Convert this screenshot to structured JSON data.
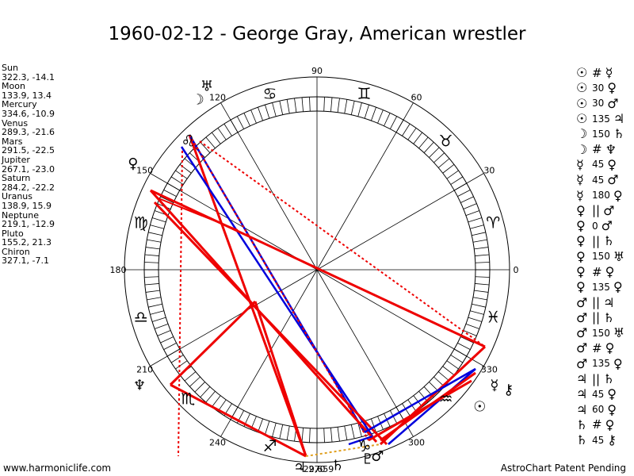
{
  "title": "1960-02-12 - George Gray, American wrestler",
  "planets": [
    {
      "name": "Sun",
      "value": "322.3, -14.1"
    },
    {
      "name": "Moon",
      "value": "133.9, 13.4"
    },
    {
      "name": "Mercury",
      "value": "334.6, -10.9"
    },
    {
      "name": "Venus",
      "value": "289.3, -21.6"
    },
    {
      "name": "Mars",
      "value": "291.5, -22.5"
    },
    {
      "name": "Jupiter",
      "value": "267.1, -23.0"
    },
    {
      "name": "Saturn",
      "value": "284.2, -22.2"
    },
    {
      "name": "Uranus",
      "value": "138.9, 15.9"
    },
    {
      "name": "Neptune",
      "value": "219.1, -12.9"
    },
    {
      "name": "Pluto",
      "value": "155.2, 21.3"
    },
    {
      "name": "Chiron",
      "value": "327.1, -7.1"
    }
  ],
  "degree_labels": [
    "90",
    "60",
    "30",
    "0",
    "330",
    "300",
    "270",
    "240",
    "210",
    "180",
    "150",
    "120"
  ],
  "zodiac_signs": [
    "♊",
    "♉",
    "♈",
    "♓",
    "♒",
    "♑",
    "♐",
    "♏",
    "♎",
    "♍",
    "♌",
    "♋"
  ],
  "chart_glyphs": [
    {
      "g": "☽",
      "name": "moon-glyph"
    },
    {
      "g": "♅",
      "name": "uranus-glyph"
    },
    {
      "g": "♀",
      "name": "venus-left-glyph"
    },
    {
      "g": "♆",
      "name": "neptune-glyph"
    },
    {
      "g": "♃",
      "name": "jupiter-glyph"
    },
    {
      "g": "☿",
      "name": "mercury-glyph"
    },
    {
      "g": "☉",
      "name": "sun-glyph"
    },
    {
      "g": "⚷",
      "name": "chiron-glyph"
    },
    {
      "g": "♄",
      "name": "saturn-glyph"
    },
    {
      "g": "♇",
      "name": "pluto-glyph"
    },
    {
      "g": "♂",
      "name": "mars-glyph"
    }
  ],
  "bottom_label": "-29,659",
  "aspects": [
    {
      "a": "☉",
      "s": "#",
      "b": "☿"
    },
    {
      "a": "☉",
      "s": "30",
      "b": "♀"
    },
    {
      "a": "☉",
      "s": "30",
      "b": "♂"
    },
    {
      "a": "☉",
      "s": "135",
      "b": "♃"
    },
    {
      "a": "☽",
      "s": "150",
      "b": "♄"
    },
    {
      "a": "☽",
      "s": "#",
      "b": "♆"
    },
    {
      "a": "☿",
      "s": "45",
      "b": "♀"
    },
    {
      "a": "☿",
      "s": "45",
      "b": "♂"
    },
    {
      "a": "☿",
      "s": "180",
      "b": "♀"
    },
    {
      "a": "♀",
      "s": "||",
      "b": "♂"
    },
    {
      "a": "♀",
      "s": "0",
      "b": "♂"
    },
    {
      "a": "♀",
      "s": "||",
      "b": "♄"
    },
    {
      "a": "♀",
      "s": "150",
      "b": "♅"
    },
    {
      "a": "♀",
      "s": "#",
      "b": "♀"
    },
    {
      "a": "♀",
      "s": "135",
      "b": "♀"
    },
    {
      "a": "♂",
      "s": "||",
      "b": "♃"
    },
    {
      "a": "♂",
      "s": "||",
      "b": "♄"
    },
    {
      "a": "♂",
      "s": "150",
      "b": "♅"
    },
    {
      "a": "♂",
      "s": "#",
      "b": "♀"
    },
    {
      "a": "♂",
      "s": "135",
      "b": "♀"
    },
    {
      "a": "♃",
      "s": "||",
      "b": "♄"
    },
    {
      "a": "♃",
      "s": "45",
      "b": "♀"
    },
    {
      "a": "♃",
      "s": "60",
      "b": "♀"
    },
    {
      "a": "♄",
      "s": "#",
      "b": "♀"
    },
    {
      "a": "♄",
      "s": "45",
      "b": "⚷"
    }
  ],
  "footer": {
    "left": "www.harmoniclife.com",
    "right": "AstroChart Patent Pending"
  },
  "colors": {
    "red": "#ee0000",
    "blue": "#0000dd",
    "orange": "#e0a020"
  }
}
